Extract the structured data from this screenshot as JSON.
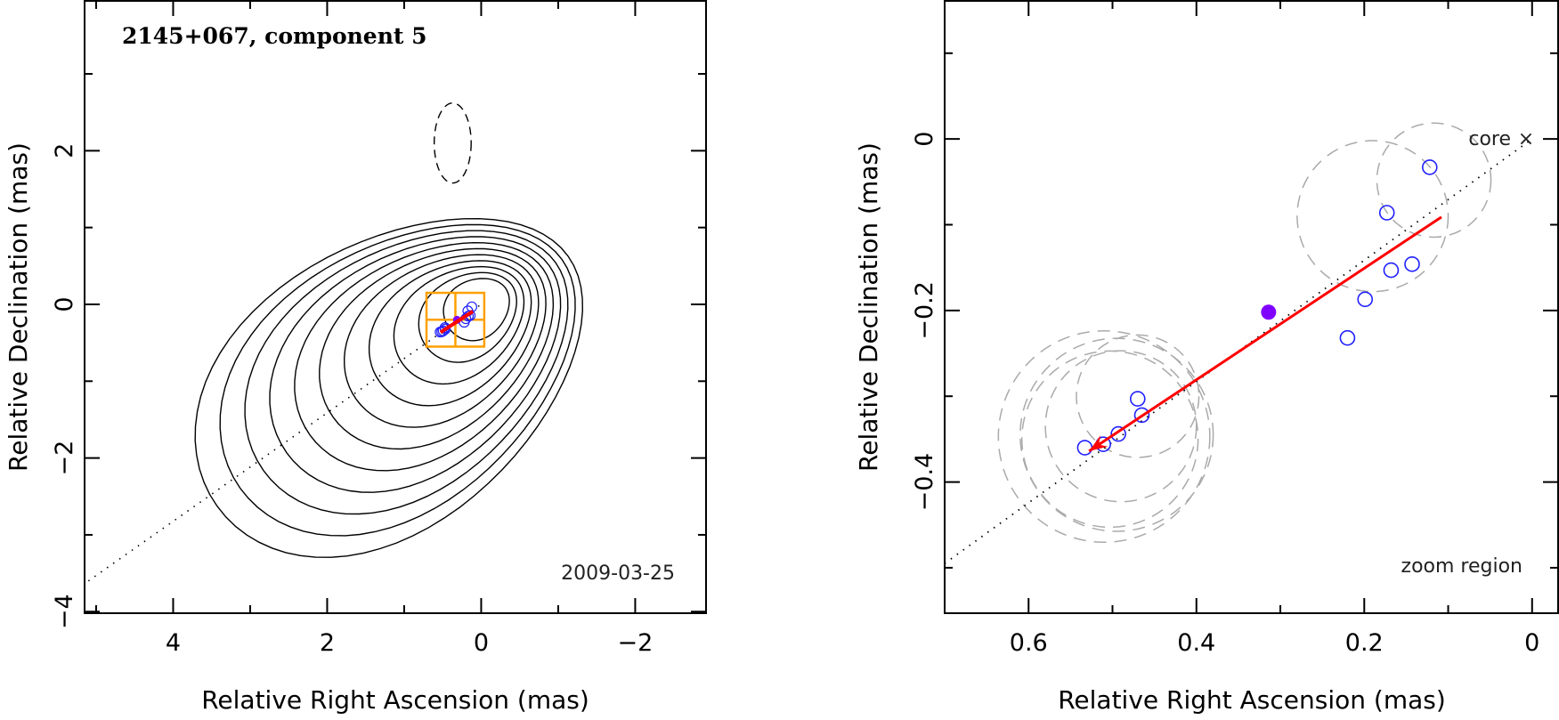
{
  "chart_data": [
    {
      "type": "scatter",
      "panel": "left",
      "title": "2145+067, component 5",
      "annotation": "2009-03-25",
      "xlabel": "Relative Right Ascension (mas)",
      "ylabel": "Relative Declination (mas)",
      "xlim": [
        5.15,
        -2.92
      ],
      "ylim": [
        -4.02,
        3.95
      ],
      "xticks": [
        4,
        2,
        0,
        -2
      ],
      "xtick_labels": [
        "4",
        "2",
        "0",
        "−2"
      ],
      "yticks": [
        2,
        0,
        -2,
        -4
      ],
      "ytick_labels": [
        "2",
        "0",
        "−2",
        "−4"
      ],
      "x_minor_step": 1,
      "y_minor_step": 1,
      "contours": {
        "description": "Total intensity contour map (nested closed contours), peak near core",
        "levels_count": 11,
        "color": "#000000"
      },
      "beam": {
        "ra": 0.37,
        "dec": 2.1,
        "major": 0.52,
        "minor": 0.24,
        "pa_deg": 0,
        "style": "dashed"
      },
      "jet_axis_line": {
        "from": [
          5.1,
          -3.6
        ],
        "to": [
          0.0,
          0.0
        ],
        "style": "dotted"
      },
      "zoom_box": {
        "ra": [
          0.71,
          -0.04
        ],
        "dec": [
          0.15,
          -0.55
        ],
        "color": "#ffa000"
      }
    },
    {
      "type": "scatter",
      "panel": "right",
      "title": "",
      "annotation": "zoom region",
      "core_label": "core",
      "core_marker": "×",
      "xlabel": "Relative Right Ascension (mas)",
      "ylabel": "Relative Declination (mas)",
      "xlim": [
        0.7,
        -0.031
      ],
      "ylim": [
        -0.553,
        0.161
      ],
      "xticks": [
        0.6,
        0.4,
        0.2,
        0
      ],
      "xtick_labels": [
        "0.6",
        "0.4",
        "0.2",
        "0"
      ],
      "yticks": [
        0,
        -0.2,
        -0.4
      ],
      "ytick_labels": [
        "0",
        "−0.2",
        "−0.4"
      ],
      "x_minor_step": 0.1,
      "y_minor_step": 0.1,
      "components": [
        {
          "ra": 0.122,
          "dec": -0.033
        },
        {
          "ra": 0.173,
          "dec": -0.086
        },
        {
          "ra": 0.143,
          "dec": -0.146
        },
        {
          "ra": 0.168,
          "dec": -0.153
        },
        {
          "ra": 0.199,
          "dec": -0.187
        },
        {
          "ra": 0.22,
          "dec": -0.232
        },
        {
          "ra": 0.47,
          "dec": -0.303
        },
        {
          "ra": 0.465,
          "dec": -0.322
        },
        {
          "ra": 0.493,
          "dec": -0.344
        },
        {
          "ra": 0.511,
          "dec": -0.356
        },
        {
          "ra": 0.533,
          "dec": -0.36
        }
      ],
      "component_sizes": [
        {
          "ra": 0.19,
          "dec": -0.09,
          "radius": 0.09
        },
        {
          "ra": 0.117,
          "dec": -0.048,
          "radius": 0.068
        },
        {
          "ra": 0.51,
          "dec": -0.347,
          "radius": 0.126
        },
        {
          "ra": 0.503,
          "dec": -0.35,
          "radius": 0.105
        },
        {
          "ra": 0.47,
          "dec": -0.3,
          "radius": 0.073
        },
        {
          "ra": 0.49,
          "dec": -0.335,
          "radius": 0.09
        },
        {
          "ra": 0.495,
          "dec": -0.345,
          "radius": 0.115
        }
      ],
      "mean_position": {
        "ra": 0.314,
        "dec": -0.202
      },
      "velocity_vector": {
        "from": {
          "ra": 0.108,
          "dec": -0.091
        },
        "to": {
          "ra": 0.528,
          "dec": -0.364
        }
      },
      "jet_axis_line": {
        "from": [
          0.7,
          -0.495
        ],
        "to": [
          0.0,
          0.0
        ],
        "style": "dotted"
      },
      "colors": {
        "component": "#2020ff",
        "mean_position": "#8000ff",
        "vector": "#ff0000",
        "size_circle": "#aaaaaa",
        "zoom_box": "#ffa000"
      }
    }
  ]
}
